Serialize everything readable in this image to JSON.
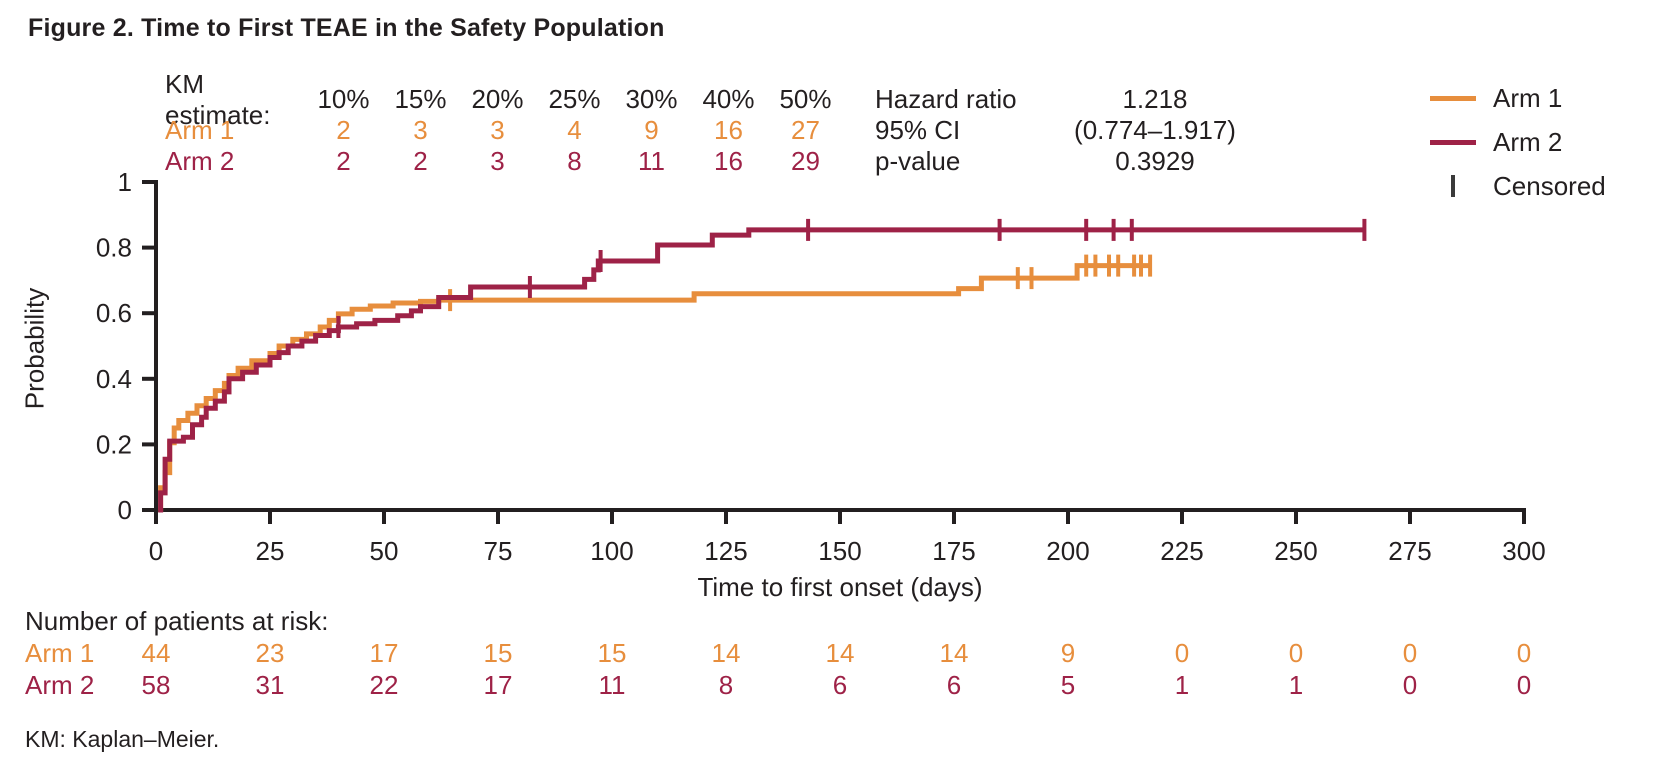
{
  "title": "Figure 2. Time to First TEAE in the Safety Population",
  "colors": {
    "arm1": "#E78E3D",
    "arm2": "#9E2247",
    "ink": "#231F20"
  },
  "km_table": {
    "header_label": "KM estimate:",
    "percent_headers": [
      "10%",
      "15%",
      "20%",
      "25%",
      "30%",
      "40%",
      "50%"
    ],
    "rows": [
      {
        "label": "Arm 1",
        "color": "#E78E3D",
        "values": [
          "2",
          "3",
          "3",
          "4",
          "9",
          "16",
          "27"
        ]
      },
      {
        "label": "Arm 2",
        "color": "#9E2247",
        "values": [
          "2",
          "2",
          "3",
          "8",
          "11",
          "16",
          "29"
        ]
      }
    ]
  },
  "stats": [
    {
      "label": "Hazard ratio",
      "value": "1.218"
    },
    {
      "label": "95% CI",
      "value": "(0.774–1.917)"
    },
    {
      "label": "p-value",
      "value": "0.3929"
    }
  ],
  "legend": [
    {
      "label": "Arm 1",
      "type": "line",
      "color": "#E78E3D"
    },
    {
      "label": "Arm 2",
      "type": "line",
      "color": "#9E2247"
    },
    {
      "label": "Censored",
      "type": "tick",
      "color": "#3A3A3A"
    }
  ],
  "chart_data": {
    "type": "line",
    "subtype": "kaplan-meier-step",
    "title": "",
    "xlabel": "Time to first onset (days)",
    "ylabel": "Probability",
    "xlim": [
      0,
      300
    ],
    "ylim": [
      0,
      1
    ],
    "xticks": [
      0,
      25,
      50,
      75,
      100,
      125,
      150,
      175,
      200,
      225,
      250,
      275,
      300
    ],
    "yticks": [
      0,
      0.2,
      0.4,
      0.6,
      0.8,
      1
    ],
    "ytick_labels": [
      "0",
      "0.2",
      "0.4",
      "0.6",
      "0.8",
      "1"
    ],
    "grid": false,
    "legend_position": "top-right",
    "series": [
      {
        "name": "Arm 1",
        "color": "#E78E3D",
        "end_x": 218,
        "steps": [
          [
            1,
            0.068
          ],
          [
            2,
            0.114
          ],
          [
            3,
            0.205
          ],
          [
            4,
            0.25
          ],
          [
            5,
            0.273
          ],
          [
            7,
            0.295
          ],
          [
            9,
            0.318
          ],
          [
            11,
            0.34
          ],
          [
            13,
            0.364
          ],
          [
            15,
            0.386
          ],
          [
            16,
            0.41
          ],
          [
            18,
            0.432
          ],
          [
            21,
            0.455
          ],
          [
            25,
            0.477
          ],
          [
            27,
            0.5
          ],
          [
            30,
            0.52
          ],
          [
            33,
            0.537
          ],
          [
            36,
            0.558
          ],
          [
            38,
            0.578
          ],
          [
            40,
            0.598
          ],
          [
            43,
            0.612
          ],
          [
            47,
            0.622
          ],
          [
            52,
            0.631
          ],
          [
            58,
            0.636
          ],
          [
            62,
            0.64
          ],
          [
            118,
            0.659
          ],
          [
            176,
            0.675
          ],
          [
            181,
            0.707
          ],
          [
            202,
            0.745
          ]
        ],
        "censored": [
          [
            64.5,
            0.64
          ],
          [
            189,
            0.707
          ],
          [
            192,
            0.707
          ],
          [
            204,
            0.745
          ],
          [
            206,
            0.745
          ],
          [
            209,
            0.745
          ],
          [
            211,
            0.745
          ],
          [
            214.5,
            0.745
          ],
          [
            216,
            0.745
          ],
          [
            218,
            0.745
          ]
        ]
      },
      {
        "name": "Arm 2",
        "color": "#9E2247",
        "end_x": 265,
        "steps": [
          [
            1,
            0.052
          ],
          [
            2,
            0.155
          ],
          [
            3,
            0.21
          ],
          [
            6,
            0.222
          ],
          [
            8,
            0.26
          ],
          [
            10,
            0.283
          ],
          [
            11,
            0.31
          ],
          [
            13,
            0.332
          ],
          [
            15,
            0.36
          ],
          [
            16,
            0.4
          ],
          [
            19,
            0.42
          ],
          [
            22,
            0.442
          ],
          [
            25,
            0.465
          ],
          [
            27,
            0.48
          ],
          [
            29,
            0.5
          ],
          [
            32,
            0.515
          ],
          [
            35,
            0.532
          ],
          [
            38,
            0.547
          ],
          [
            40,
            0.558
          ],
          [
            44,
            0.568
          ],
          [
            48,
            0.578
          ],
          [
            53,
            0.592
          ],
          [
            56,
            0.607
          ],
          [
            58,
            0.62
          ],
          [
            62,
            0.648
          ],
          [
            69,
            0.68
          ],
          [
            94,
            0.703
          ],
          [
            96,
            0.732
          ],
          [
            97,
            0.759
          ],
          [
            110,
            0.808
          ],
          [
            122,
            0.838
          ],
          [
            130,
            0.854
          ]
        ],
        "censored": [
          [
            40,
            0.558
          ],
          [
            82,
            0.68
          ],
          [
            97.5,
            0.759
          ],
          [
            143,
            0.854
          ],
          [
            185,
            0.854
          ],
          [
            204,
            0.854
          ],
          [
            210,
            0.854
          ],
          [
            214,
            0.854
          ],
          [
            265,
            0.854
          ]
        ]
      }
    ]
  },
  "at_risk": {
    "header": "Number of patients at risk:",
    "timepoints": [
      0,
      25,
      50,
      75,
      100,
      125,
      150,
      175,
      200,
      225,
      250,
      275,
      300
    ],
    "rows": [
      {
        "label": "Arm 1",
        "color": "#E78E3D",
        "values": [
          "44",
          "23",
          "17",
          "15",
          "15",
          "14",
          "14",
          "14",
          "9",
          "0",
          "0",
          "0",
          "0"
        ]
      },
      {
        "label": "Arm 2",
        "color": "#9E2247",
        "values": [
          "58",
          "31",
          "22",
          "17",
          "11",
          "8",
          "6",
          "6",
          "5",
          "1",
          "1",
          "0",
          "0"
        ]
      }
    ]
  },
  "footnote": "KM: Kaplan–Meier."
}
